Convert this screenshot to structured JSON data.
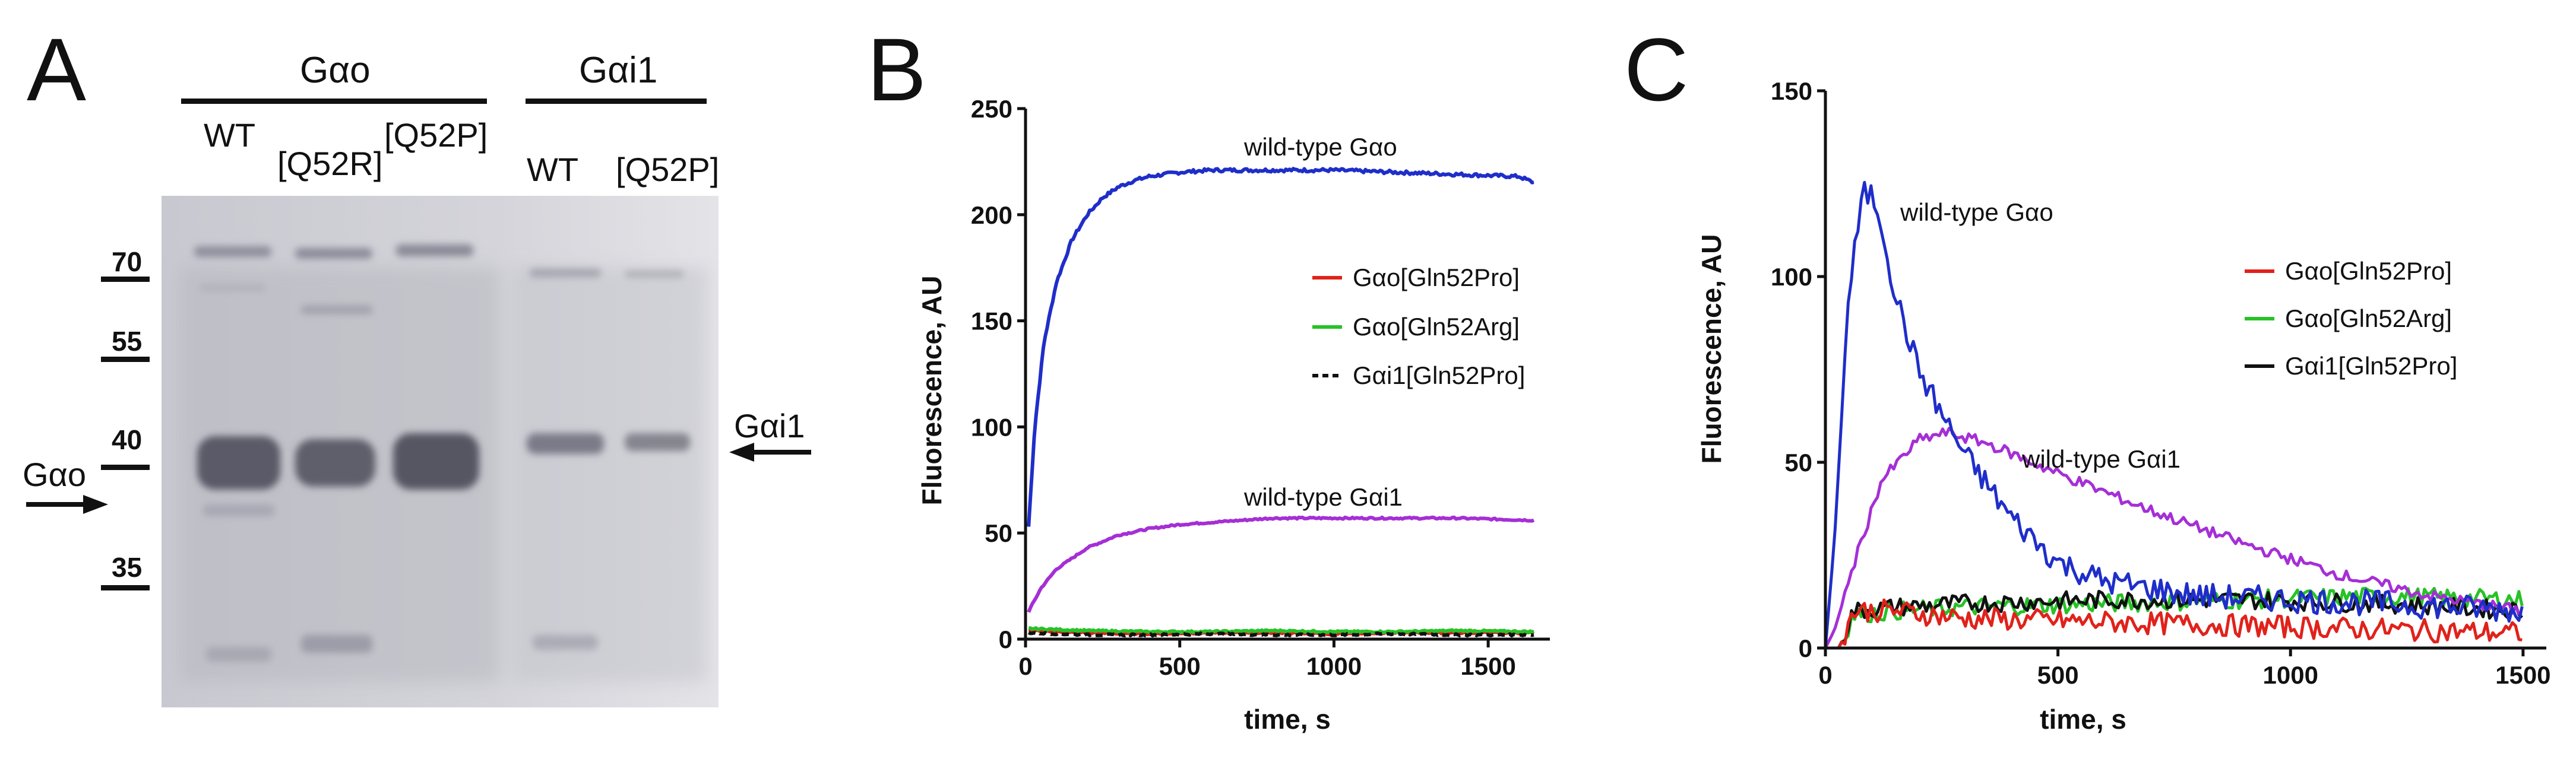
{
  "panels": {
    "a": "A",
    "b": "B",
    "c": "C"
  },
  "gel": {
    "group_labels": [
      "Gαo",
      "Gαi1"
    ],
    "lane_labels": [
      "WT",
      "[Q52R]",
      "[Q52P]",
      "WT",
      "[Q52P]"
    ],
    "mw_markers": [
      "70",
      "55",
      "40",
      "35"
    ],
    "arrow_left_label": "Gαo",
    "arrow_right_label": "Gαi1"
  },
  "colors": {
    "blue": "#1f2ec9",
    "purple": "#a52fd6",
    "red": "#e0221b",
    "green": "#27c227",
    "black": "#111111"
  },
  "chart_data": [
    {
      "type": "line",
      "panel": "B",
      "xlabel": "time, s",
      "ylabel": "Fluorescence,  AU",
      "xlim": [
        0,
        1700
      ],
      "ylim": [
        0,
        250
      ],
      "xticks": [
        0,
        500,
        1000,
        1500
      ],
      "yticks": [
        0,
        50,
        100,
        150,
        200,
        250
      ],
      "legend": [
        "Gαo[Gln52Pro]",
        "Gαo[Gln52Arg]",
        "Gαi1[Gln52Pro]"
      ],
      "annotations": [
        "wild-type Gαo",
        "wild-type Gαi1"
      ],
      "series": [
        {
          "name": "wild-type Gαo",
          "color": "blue",
          "dash": false,
          "x": [
            10,
            30,
            60,
            100,
            150,
            200,
            250,
            300,
            350,
            400,
            500,
            600,
            700,
            800,
            1000,
            1200,
            1400,
            1600,
            1650
          ],
          "y": [
            53,
            100,
            140,
            168,
            188,
            200,
            208,
            213,
            216,
            218,
            220,
            221,
            221,
            221,
            221,
            220,
            219,
            218,
            215
          ]
        },
        {
          "name": "wild-type Gαi1",
          "color": "purple",
          "dash": false,
          "x": [
            10,
            50,
            100,
            200,
            300,
            400,
            500,
            600,
            700,
            800,
            1000,
            1200,
            1400,
            1650
          ],
          "y": [
            13,
            24,
            33,
            43,
            49,
            52,
            54,
            55,
            56,
            57,
            57,
            57,
            57,
            56
          ]
        },
        {
          "name": "Gαo[Gln52Pro]",
          "color": "red",
          "dash": false,
          "x": [
            10,
            200,
            400,
            600,
            800,
            1000,
            1200,
            1400,
            1650
          ],
          "y": [
            4,
            3,
            2.5,
            3,
            3,
            2.5,
            3,
            3,
            3
          ]
        },
        {
          "name": "Gαo[Gln52Arg]",
          "color": "green",
          "dash": false,
          "x": [
            10,
            200,
            400,
            600,
            800,
            1000,
            1200,
            1400,
            1650
          ],
          "y": [
            5,
            4,
            3.5,
            3.5,
            4,
            3.5,
            3.5,
            4,
            3.5
          ]
        },
        {
          "name": "Gαi1[Gln52Pro]",
          "color": "black",
          "dash": true,
          "x": [
            10,
            200,
            400,
            600,
            800,
            1000,
            1200,
            1400,
            1650
          ],
          "y": [
            3,
            2,
            2,
            2.5,
            2,
            2,
            2.5,
            2,
            2
          ]
        }
      ]
    },
    {
      "type": "line",
      "panel": "C",
      "xlabel": "time, s",
      "ylabel": "Fluorescence,  AU",
      "xlim": [
        0,
        1550
      ],
      "ylim": [
        0,
        150
      ],
      "xticks": [
        0,
        500,
        1000,
        1500
      ],
      "yticks": [
        0,
        50,
        100,
        150
      ],
      "legend": [
        "Gαo[Gln52Pro]",
        "Gαo[Gln52Arg]",
        "Gαi1[Gln52Pro]"
      ],
      "annotations": [
        "wild-type Gαo",
        "wild-type Gαi1"
      ],
      "series": [
        {
          "name": "Gαo[Gln52Arg]",
          "color": "green",
          "noise": 2.5,
          "x": [
            0,
            30,
            60,
            150,
            300,
            600,
            900,
            1200,
            1500
          ],
          "y": [
            0,
            0,
            9,
            10,
            11,
            12,
            13,
            14,
            13
          ]
        },
        {
          "name": "Gαi1[Gln52Pro]",
          "color": "black",
          "noise": 2.5,
          "x": [
            0,
            30,
            60,
            150,
            300,
            600,
            900,
            1200,
            1500
          ],
          "y": [
            0,
            0,
            10,
            11,
            12,
            13,
            13,
            12,
            10
          ]
        },
        {
          "name": "Gαo[Gln52Pro]",
          "color": "red",
          "noise": 3,
          "x": [
            0,
            30,
            60,
            150,
            300,
            600,
            900,
            1200,
            1500
          ],
          "y": [
            0,
            0,
            10,
            10,
            8,
            7,
            6,
            5,
            4
          ]
        },
        {
          "name": "wild-type Gαi1",
          "color": "purple",
          "noise": 1.5,
          "x": [
            0,
            20,
            60,
            120,
            200,
            260,
            350,
            500,
            700,
            900,
            1100,
            1300,
            1500
          ],
          "y": [
            0,
            5,
            22,
            45,
            56,
            58,
            55,
            47,
            37,
            28,
            20,
            14,
            10
          ]
        },
        {
          "name": "wild-type Gαo",
          "color": "blue",
          "noise": 3.5,
          "x": [
            0,
            20,
            50,
            80,
            100,
            120,
            150,
            200,
            250,
            300,
            400,
            500,
            600,
            800,
            1000,
            1200,
            1500
          ],
          "y": [
            0,
            30,
            95,
            122,
            122,
            115,
            95,
            75,
            63,
            52,
            35,
            23,
            18,
            14,
            13,
            12,
            10
          ]
        }
      ]
    }
  ]
}
